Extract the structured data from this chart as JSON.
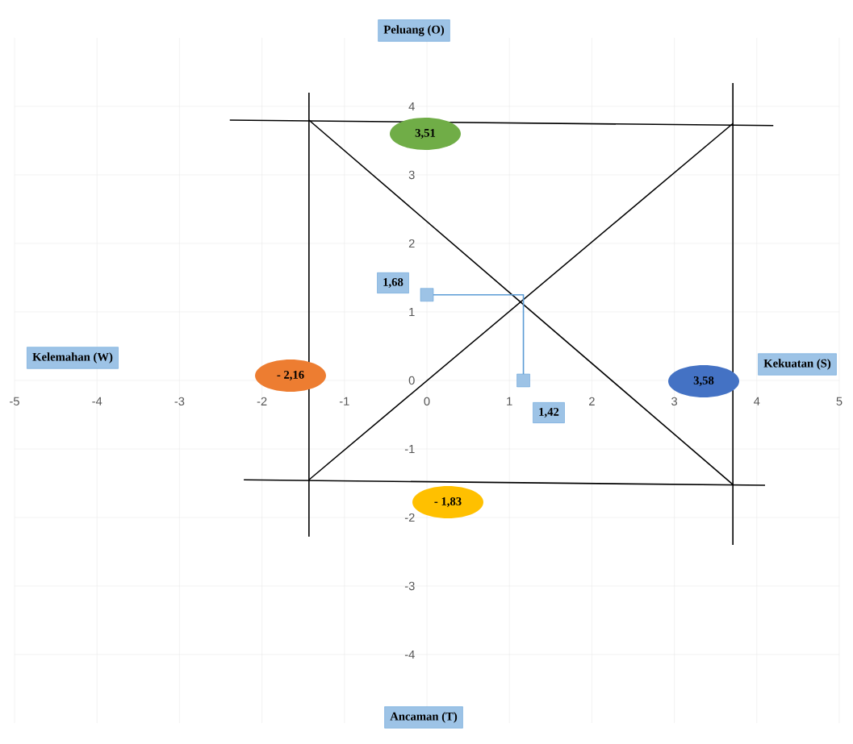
{
  "chart_data": {
    "type": "scatter",
    "annotations": [
      "Peluang (O)",
      "Kelemahan (W)",
      "Kekuatan (S)",
      "Ancaman (T)",
      "3,51",
      "- 2,16",
      "- 1,83",
      "3,58",
      "1,68",
      "1,42"
    ],
    "xlim": [
      -5,
      5
    ],
    "ylim": [
      -5,
      5
    ],
    "xticks": [
      -5,
      -4,
      -3,
      -2,
      -1,
      0,
      1,
      2,
      3,
      4,
      5
    ],
    "yticks": [
      -4,
      -3,
      -2,
      -1,
      0,
      1,
      2,
      3,
      4
    ],
    "grid": true,
    "series": [
      {
        "type": "line",
        "color": "#000000",
        "x": [
          -2.39,
          4.2
        ],
        "values": [
          3.8,
          3.72
        ]
      },
      {
        "type": "line",
        "color": "#000000",
        "x": [
          -2.22,
          4.1
        ],
        "values": [
          -1.45,
          -1.53
        ]
      },
      {
        "type": "line",
        "color": "#000000",
        "x": [
          -1.43,
          -1.43
        ],
        "values": [
          4.2,
          -2.28
        ]
      },
      {
        "type": "line",
        "color": "#000000",
        "x": [
          3.71,
          3.71
        ],
        "values": [
          4.34,
          -2.4
        ]
      },
      {
        "type": "line",
        "color": "#000000",
        "x": [
          -1.43,
          3.71
        ],
        "values": [
          3.8,
          -1.52
        ]
      },
      {
        "type": "line",
        "color": "#000000",
        "x": [
          -1.43,
          3.71
        ],
        "values": [
          -1.45,
          3.75
        ]
      },
      {
        "type": "line",
        "color": "#5b9bd5",
        "x": [
          0,
          1.17,
          1.17
        ],
        "values": [
          1.25,
          1.25,
          0
        ]
      },
      {
        "marker": "square",
        "color": "#9dc3e6",
        "x": [
          0,
          1.17
        ],
        "values": [
          1.25,
          0
        ]
      }
    ]
  }
}
